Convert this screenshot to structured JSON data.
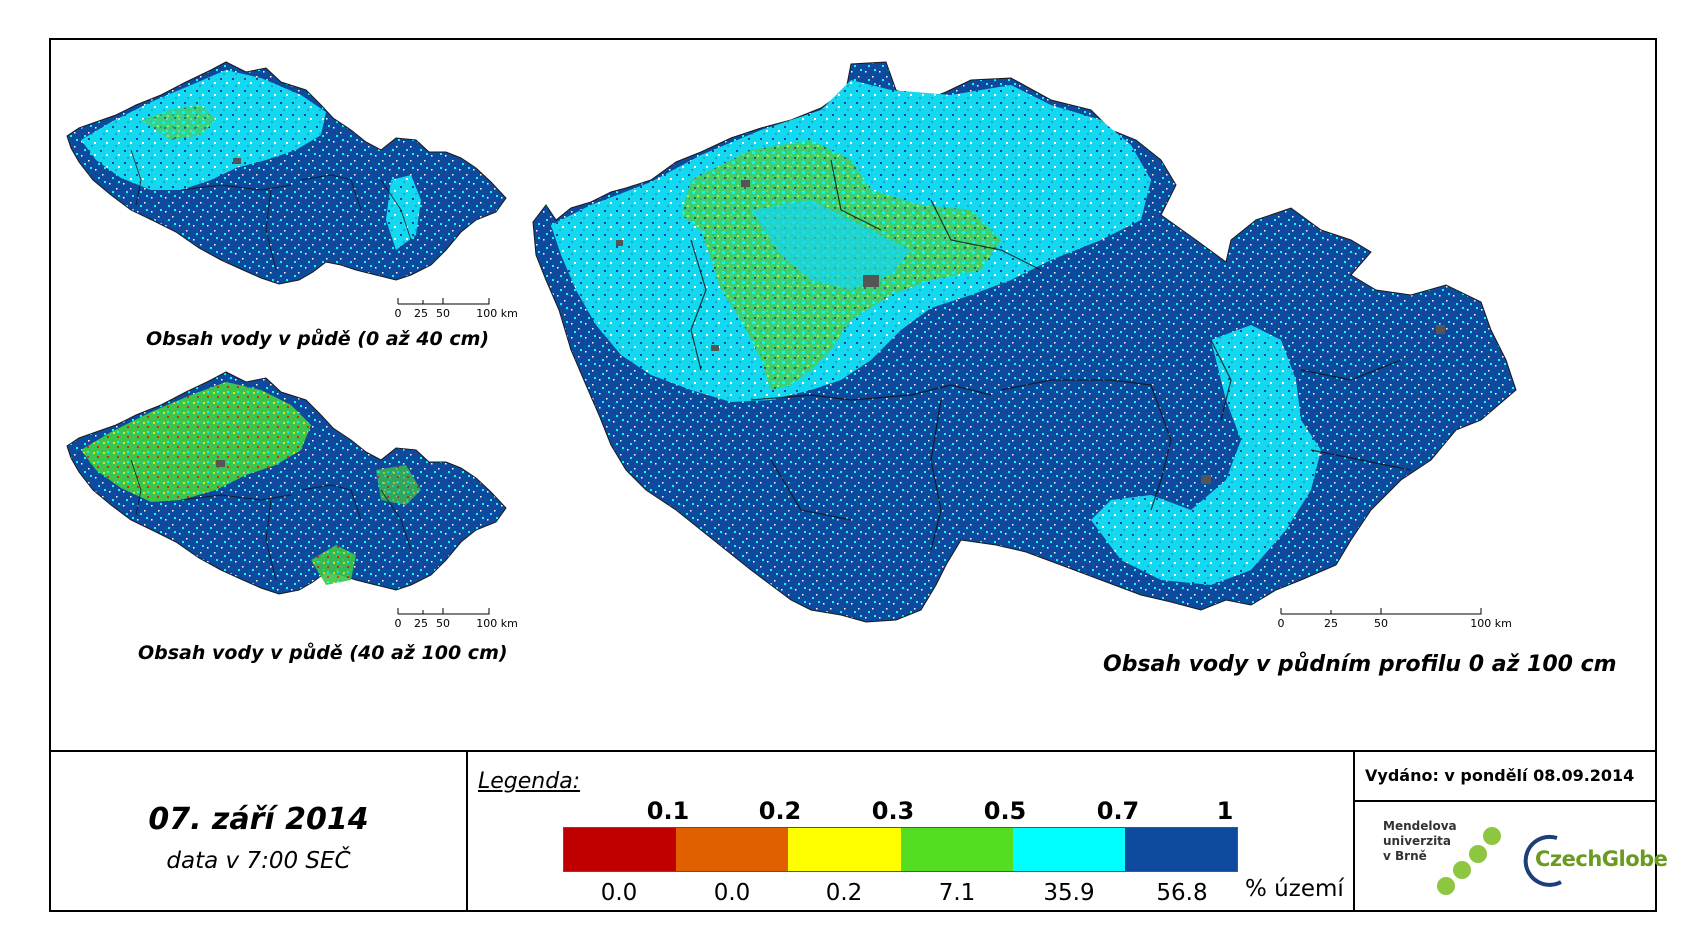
{
  "maps": {
    "small_top_title": "Obsah vody v půdě (0 až 40 cm)",
    "small_bottom_title": "Obsah vody v půdě (40 až 100 cm)",
    "large_title": "Obsah vody v půdním profilu 0 až 100 cm",
    "scalebar": {
      "labels": [
        "0",
        "25",
        "50",
        "100 km"
      ]
    }
  },
  "date": {
    "main": "07. září 2014",
    "sub": "data v 7:00 SEČ"
  },
  "legend": {
    "title": "Legenda:",
    "thresholds": [
      "0.1",
      "0.2",
      "0.3",
      "0.5",
      "0.7",
      "1"
    ],
    "colors": [
      "#c00000",
      "#e06000",
      "#ffff00",
      "#55dd22",
      "#00ffff",
      "#0d4a9e"
    ],
    "percentages": [
      "0.0",
      "0.0",
      "0.2",
      "7.1",
      "35.9",
      "56.8"
    ],
    "percent_unit": "% území"
  },
  "info": {
    "issued": "Vydáno: v pondělí 08.09.2014",
    "logo_mendel": "Mendelova univerzita v Brně",
    "logo_mendel_lines": [
      "Mendelova",
      "univerzita",
      "v Brně"
    ],
    "logo_czechglobe": "CzechGlobe"
  }
}
